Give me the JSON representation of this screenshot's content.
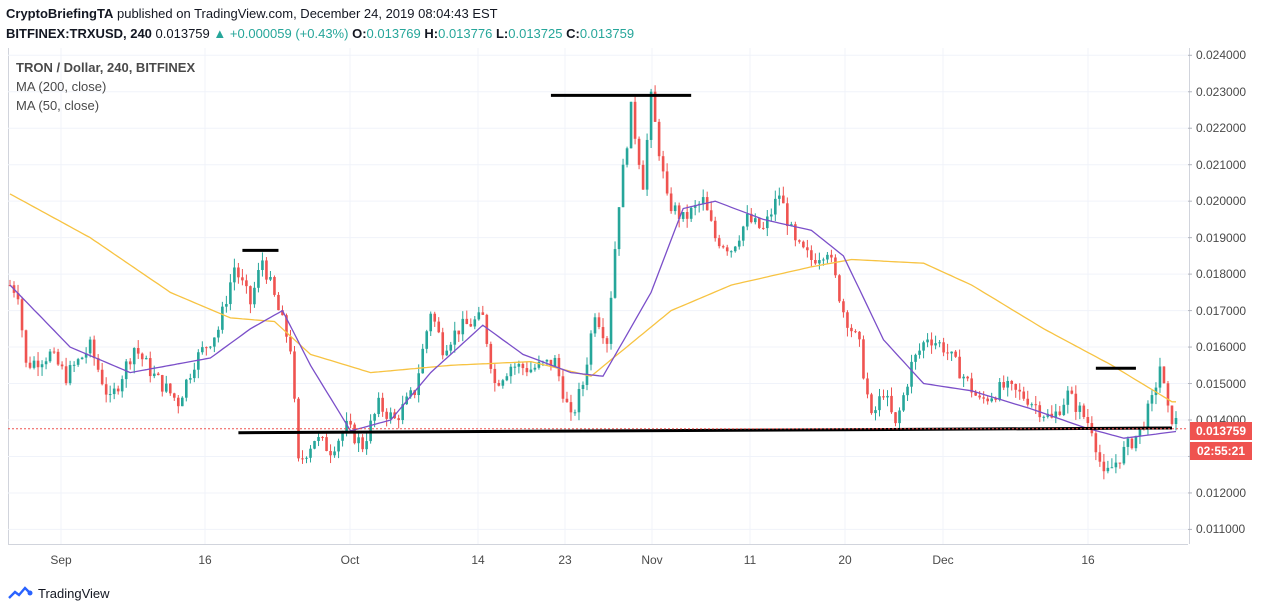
{
  "header": {
    "publisher": "CryptoBriefingTA",
    "published_text": " published on TradingView.com, December 24, 2019 08:04:43 EST",
    "symbol": "BITFINEX:TRXUSD, 240",
    "last": "0.013759",
    "change": "+0.000059 (+0.43%)",
    "o_label": "O:",
    "o": "0.013769",
    "h_label": "H:",
    "h": "0.013776",
    "l_label": "L:",
    "l": "0.013725",
    "c_label": "C:",
    "c": "0.013759"
  },
  "legend": {
    "title": "TRON / Dollar, 240, BITFINEX",
    "ma200": "MA (200, close)",
    "ma50": "MA (50, close)"
  },
  "tags": {
    "price": "0.013759",
    "time": "02:55:21"
  },
  "footer": {
    "brand": "TradingView"
  },
  "colors": {
    "up": "#26a69a",
    "down": "#ef5350",
    "ma200": "#f7c342",
    "ma50": "#7b4fc9",
    "trendline": "#000000"
  },
  "chart_data": {
    "type": "candlestick",
    "y_ticks": [
      "0.024000",
      "0.023000",
      "0.022000",
      "0.021000",
      "0.020000",
      "0.019000",
      "0.018000",
      "0.017000",
      "0.016000",
      "0.015000",
      "0.014000",
      "0.013000",
      "0.012000",
      "0.011000"
    ],
    "ylim": [
      0.0106,
      0.0242
    ],
    "x_ticks": [
      "Sep",
      "16",
      "Oct",
      "14",
      "23",
      "Nov",
      "11",
      "20",
      "Dec",
      "16"
    ],
    "price_keypoints": [
      [
        0,
        0.0177
      ],
      [
        2,
        0.0175
      ],
      [
        4,
        0.0155
      ],
      [
        10,
        0.0158
      ],
      [
        14,
        0.0152
      ],
      [
        20,
        0.016
      ],
      [
        25,
        0.0145
      ],
      [
        31,
        0.016
      ],
      [
        36,
        0.0152
      ],
      [
        42,
        0.0145
      ],
      [
        46,
        0.0156
      ],
      [
        52,
        0.0165
      ],
      [
        56,
        0.0182
      ],
      [
        60,
        0.0172
      ],
      [
        63,
        0.0184
      ],
      [
        67,
        0.017
      ],
      [
        70,
        0.016
      ],
      [
        72,
        0.0128
      ],
      [
        76,
        0.0135
      ],
      [
        80,
        0.0132
      ],
      [
        84,
        0.0138
      ],
      [
        88,
        0.0133
      ],
      [
        92,
        0.0144
      ],
      [
        96,
        0.014
      ],
      [
        101,
        0.0148
      ],
      [
        105,
        0.017
      ],
      [
        108,
        0.016
      ],
      [
        112,
        0.0165
      ],
      [
        118,
        0.0168
      ],
      [
        121,
        0.015
      ],
      [
        125,
        0.0155
      ],
      [
        130,
        0.0154
      ],
      [
        136,
        0.0156
      ],
      [
        140,
        0.014
      ],
      [
        143,
        0.015
      ],
      [
        146,
        0.017
      ],
      [
        149,
        0.0162
      ],
      [
        152,
        0.02
      ],
      [
        155,
        0.0225
      ],
      [
        158,
        0.0205
      ],
      [
        160,
        0.0228
      ],
      [
        164,
        0.02
      ],
      [
        168,
        0.0195
      ],
      [
        173,
        0.02
      ],
      [
        176,
        0.019
      ],
      [
        180,
        0.0187
      ],
      [
        184,
        0.0195
      ],
      [
        188,
        0.0192
      ],
      [
        192,
        0.0202
      ],
      [
        196,
        0.0188
      ],
      [
        200,
        0.0184
      ],
      [
        204,
        0.0187
      ],
      [
        208,
        0.017
      ],
      [
        212,
        0.016
      ],
      [
        215,
        0.014
      ],
      [
        218,
        0.0148
      ],
      [
        221,
        0.0138
      ],
      [
        225,
        0.0155
      ],
      [
        229,
        0.0163
      ],
      [
        233,
        0.016
      ],
      [
        238,
        0.0152
      ],
      [
        242,
        0.0145
      ],
      [
        248,
        0.0149
      ],
      [
        254,
        0.0146
      ],
      [
        260,
        0.014
      ],
      [
        264,
        0.0147
      ],
      [
        270,
        0.0138
      ],
      [
        273,
        0.0124
      ],
      [
        277,
        0.013
      ],
      [
        282,
        0.0137
      ],
      [
        285,
        0.0145
      ],
      [
        287,
        0.0155
      ],
      [
        289,
        0.0142
      ],
      [
        292,
        0.0138
      ]
    ],
    "ma200_keypoints": [
      [
        0,
        0.0202
      ],
      [
        20,
        0.019
      ],
      [
        40,
        0.0175
      ],
      [
        55,
        0.0168
      ],
      [
        66,
        0.0167
      ],
      [
        75,
        0.0158
      ],
      [
        90,
        0.0153
      ],
      [
        110,
        0.0155
      ],
      [
        130,
        0.0156
      ],
      [
        145,
        0.0152
      ],
      [
        165,
        0.017
      ],
      [
        180,
        0.0177
      ],
      [
        200,
        0.0182
      ],
      [
        210,
        0.0184
      ],
      [
        228,
        0.0183
      ],
      [
        240,
        0.0177
      ],
      [
        258,
        0.0165
      ],
      [
        275,
        0.0155
      ],
      [
        290,
        0.0145
      ]
    ],
    "ma50_keypoints": [
      [
        0,
        0.0177
      ],
      [
        15,
        0.016
      ],
      [
        30,
        0.0153
      ],
      [
        50,
        0.0157
      ],
      [
        60,
        0.0165
      ],
      [
        68,
        0.017
      ],
      [
        75,
        0.0155
      ],
      [
        85,
        0.0137
      ],
      [
        95,
        0.014
      ],
      [
        105,
        0.0153
      ],
      [
        118,
        0.0166
      ],
      [
        128,
        0.0158
      ],
      [
        140,
        0.0153
      ],
      [
        148,
        0.0152
      ],
      [
        160,
        0.0175
      ],
      [
        168,
        0.0198
      ],
      [
        176,
        0.02
      ],
      [
        188,
        0.0195
      ],
      [
        200,
        0.0192
      ],
      [
        208,
        0.0185
      ],
      [
        218,
        0.0162
      ],
      [
        228,
        0.015
      ],
      [
        240,
        0.0148
      ],
      [
        255,
        0.0143
      ],
      [
        268,
        0.0138
      ],
      [
        278,
        0.0135
      ],
      [
        292,
        0.0137
      ]
    ],
    "last_price": 0.013759,
    "lines": [
      {
        "x1": 58,
        "x2": 67,
        "y": 0.01865
      },
      {
        "x1": 135,
        "x2": 170,
        "y": 0.0229
      },
      {
        "x1": 271,
        "x2": 281,
        "y": 0.01542
      },
      {
        "x1": 57,
        "x2": 290,
        "y1": 0.01365,
        "y2": 0.01378
      }
    ],
    "n_bars": 292
  }
}
